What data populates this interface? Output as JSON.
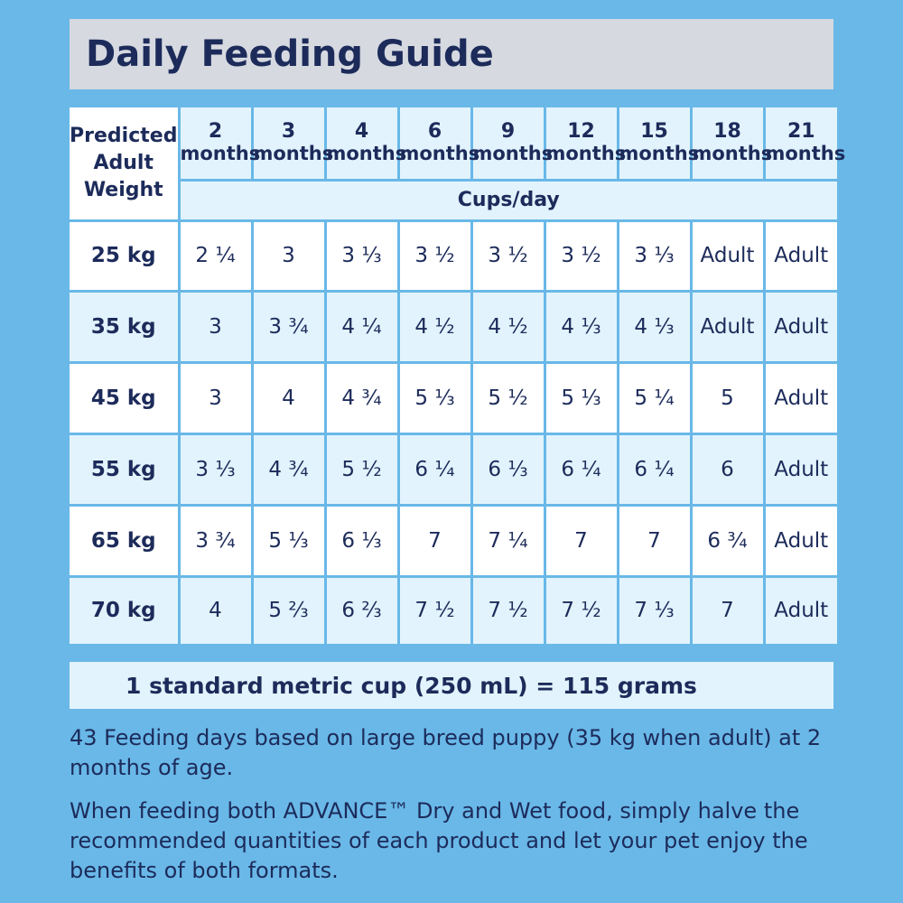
{
  "title": "Daily Feeding Guide",
  "table": {
    "weight_header_lines": [
      "Predicted",
      "Adult",
      "Weight"
    ],
    "ages": [
      {
        "num": "2",
        "unit": "months"
      },
      {
        "num": "3",
        "unit": "months"
      },
      {
        "num": "4",
        "unit": "months"
      },
      {
        "num": "6",
        "unit": "months"
      },
      {
        "num": "9",
        "unit": "months"
      },
      {
        "num": "12",
        "unit": "months"
      },
      {
        "num": "15",
        "unit": "months"
      },
      {
        "num": "18",
        "unit": "months"
      },
      {
        "num": "21",
        "unit": "months"
      }
    ],
    "units_label": "Cups/day",
    "rows": [
      {
        "weight": "25 kg",
        "values": [
          "2 ¼",
          "3",
          "3 ⅓",
          "3 ½",
          "3 ½",
          "3 ½",
          "3 ⅓",
          "Adult",
          "Adult"
        ]
      },
      {
        "weight": "35 kg",
        "values": [
          "3",
          "3 ¾",
          "4 ¼",
          "4 ½",
          "4 ½",
          "4 ⅓",
          "4 ⅓",
          "Adult",
          "Adult"
        ]
      },
      {
        "weight": "45 kg",
        "values": [
          "3",
          "4",
          "4 ¾",
          "5 ⅓",
          "5 ½",
          "5 ⅓",
          "5 ¼",
          "5",
          "Adult"
        ]
      },
      {
        "weight": "55 kg",
        "values": [
          "3 ⅓",
          "4 ¾",
          "5 ½",
          "6 ¼",
          "6 ⅓",
          "6 ¼",
          "6 ¼",
          "6",
          "Adult"
        ]
      },
      {
        "weight": "65 kg",
        "values": [
          "3 ¾",
          "5 ⅓",
          "6 ⅓",
          "7",
          "7 ¼",
          "7",
          "7",
          "6 ¾",
          "Adult"
        ]
      },
      {
        "weight": "70 kg",
        "values": [
          "4",
          "5 ⅔",
          "6 ⅔",
          "7 ½",
          "7 ½",
          "7 ½",
          "7 ⅓",
          "7",
          "Adult"
        ]
      }
    ]
  },
  "conversion": "1 standard metric cup (250 mL) = 115 grams",
  "notes": [
    "43 Feeding days based on large breed puppy (35 kg when adult) at 2 months of age.",
    "When feeding both ADVANCE™ Dry and Wet food, simply halve the recommended quantities of each product and let your pet enjoy the benefits of both formats."
  ],
  "colors": {
    "background": "#69b8e8",
    "title_bar": "#d6d9e0",
    "text": "#1c2b5a",
    "cell_light": "#e2f3fd",
    "cell_white": "#ffffff"
  }
}
